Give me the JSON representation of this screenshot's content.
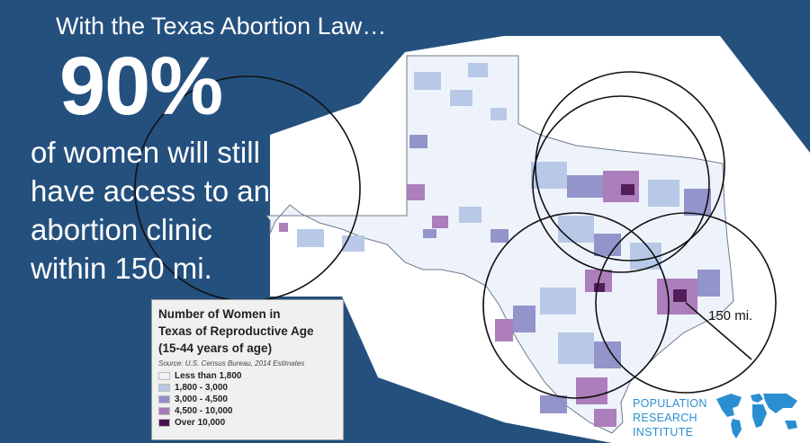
{
  "headline": "With the Texas Abortion Law…",
  "stat_value": "90%",
  "stat_lines": [
    "of women will still",
    "have access to an",
    "abortion clinic",
    "within 150 mi."
  ],
  "radius_label": "150 mi.",
  "legend": {
    "title_lines": [
      "Number of Women in",
      "Texas of Reproductive Age",
      "(15-44 years of age)"
    ],
    "source": "Source: U.S. Census Bureau, 2014 Estimates",
    "entries": [
      {
        "label": "Less than 1,800",
        "color": "#eef3fb"
      },
      {
        "label": "1,800 - 3,000",
        "color": "#b6c7e6"
      },
      {
        "label": "3,000 - 4,500",
        "color": "#8e8fc8"
      },
      {
        "label": "4,500 - 10,000",
        "color": "#a978b8"
      },
      {
        "label": "Over 10,000",
        "color": "#4a1250"
      }
    ]
  },
  "logo_lines": [
    "POPULATION",
    "RESEARCH",
    "INSTITUTE"
  ],
  "colors": {
    "background": "#24507e",
    "text": "#ffffff",
    "logo": "#2a8fd0"
  },
  "icons": {
    "logo_mark": "world-map-icon"
  }
}
